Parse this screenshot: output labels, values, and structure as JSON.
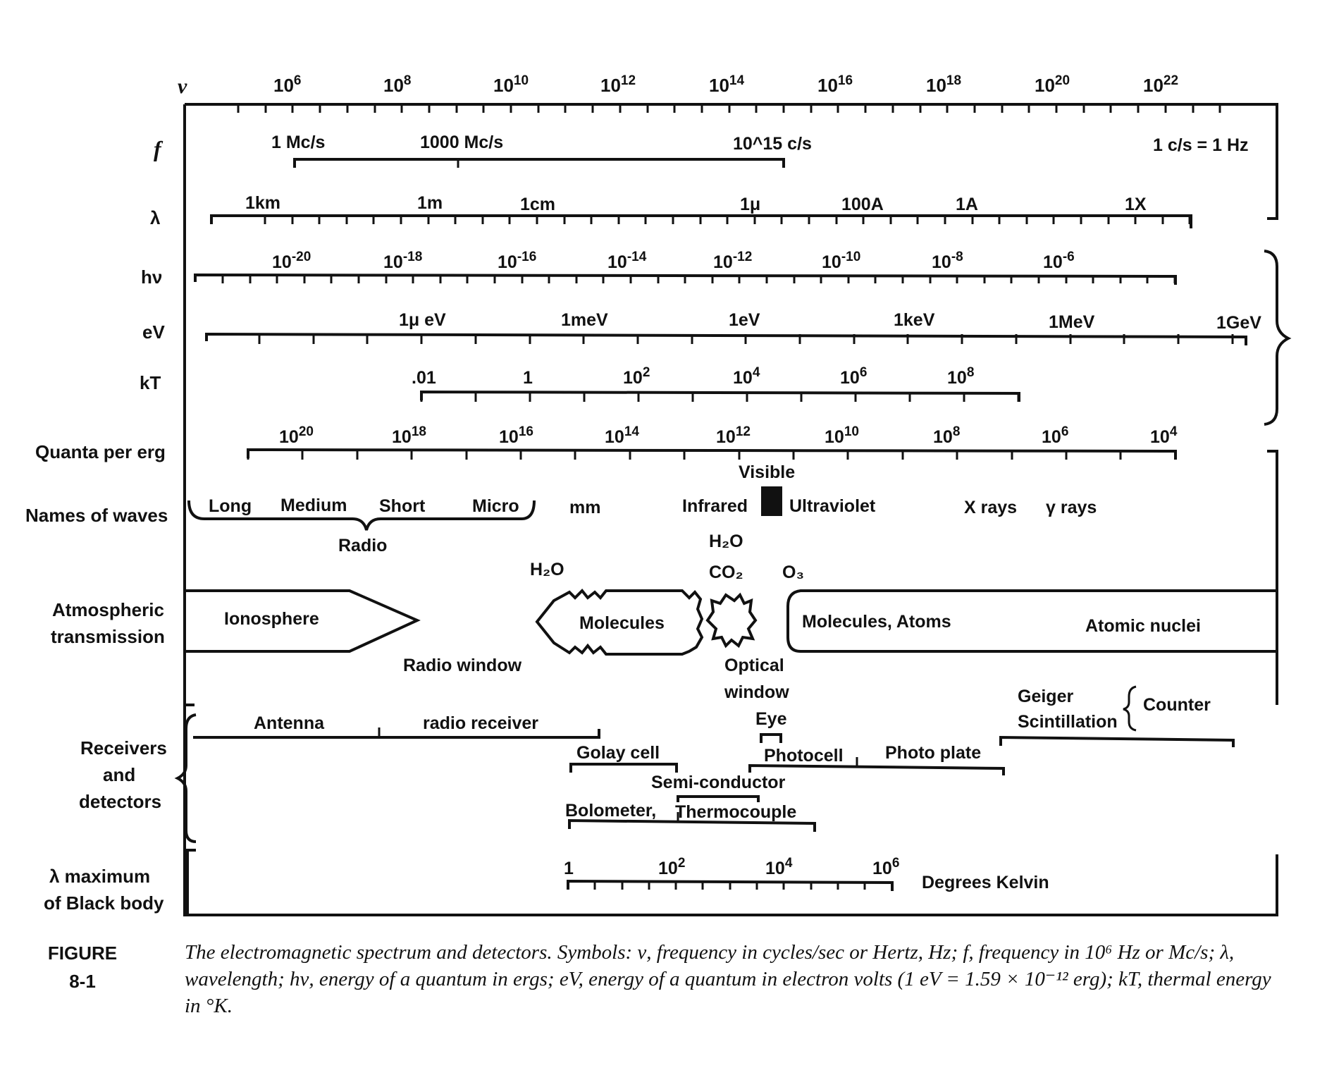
{
  "scales": {
    "nu": {
      "symbol": "ν",
      "ticks": [
        "10^6",
        "10^8",
        "10^10",
        "10^12",
        "10^14",
        "10^16",
        "10^18",
        "10^20",
        "10^22"
      ]
    },
    "f": {
      "symbol": "f",
      "labels": [
        "1 Mc/s",
        "1000 Mc/s",
        "10^15 c/s"
      ],
      "note": "1 c/s = 1 Hz"
    },
    "lambda": {
      "symbol": "λ",
      "labels": [
        "1km",
        "1m",
        "1cm",
        "1μ",
        "100A",
        "1A",
        "1X"
      ]
    },
    "hnu": {
      "symbol": "hν",
      "labels": [
        "10^-20",
        "10^-18",
        "10^-16",
        "10^-14",
        "10^-12",
        "10^-10",
        "10^-8",
        "10^-6"
      ]
    },
    "ev": {
      "symbol": "eV",
      "labels": [
        "1μ eV",
        "1meV",
        "1eV",
        "1keV",
        "1MeV",
        "1GeV"
      ]
    },
    "kt": {
      "symbol": "kT",
      "labels": [
        ".01",
        "1",
        "10^2",
        "10^4",
        "10^6",
        "10^8"
      ]
    },
    "quanta": {
      "symbol": "Quanta per erg",
      "labels": [
        "10^20",
        "10^18",
        "10^16",
        "10^14",
        "10^12",
        "10^10",
        "10^8",
        "10^6",
        "10^4"
      ]
    }
  },
  "waves": {
    "row_label": "Names of waves",
    "radio_group": [
      "Long",
      "Medium",
      "Short",
      "Micro"
    ],
    "radio_label": "Radio",
    "others": [
      "mm",
      "Infrared",
      "Ultraviolet",
      "X rays",
      "γ rays"
    ],
    "visible": "Visible"
  },
  "atmosphere": {
    "row_label_1": "Atmospheric",
    "row_label_2": "transmission",
    "ionosphere": "Ionosphere",
    "molecules": "Molecules",
    "molecules_atoms": "Molecules, Atoms",
    "atomic_nuclei": "Atomic nuclei",
    "h2o_left": "H₂O",
    "h2o_mid": "H₂O",
    "co2": "CO₂",
    "o3": "O₃",
    "radio_window": "Radio window",
    "optical_window_1": "Optical",
    "optical_window_2": "window"
  },
  "detectors": {
    "row_label_1": "Receivers",
    "row_label_2": "and",
    "row_label_3": "detectors",
    "antenna": "Antenna",
    "radio_receiver": "radio receiver",
    "golay": "Golay cell",
    "semiconductor": "Semi-conductor",
    "bolometer": "Bolometer,",
    "thermocouple": "Thermocouple",
    "eye": "Eye",
    "photocell": "Photocell",
    "photo_plate": "Photo plate",
    "geiger": "Geiger",
    "scintillation": "Scintillation",
    "counter": "Counter"
  },
  "blackbody": {
    "row_label_1": "λ maximum",
    "row_label_2": "of Black body",
    "labels": [
      "1",
      "10^2",
      "10^4",
      "10^6"
    ],
    "unit": "Degrees Kelvin"
  },
  "figure": {
    "label_1": "FIGURE",
    "label_2": "8-1",
    "caption": "The electromagnetic spectrum and detectors. Symbols: ν, frequency in cycles/sec or Hertz, Hz; f, frequency in 10⁶ Hz or Mc/s; λ, wavelength; hν, energy of a quantum in ergs; eV, energy of a quantum in electron volts (1 eV = 1.59 × 10⁻¹² erg); kT, thermal energy in °K."
  }
}
